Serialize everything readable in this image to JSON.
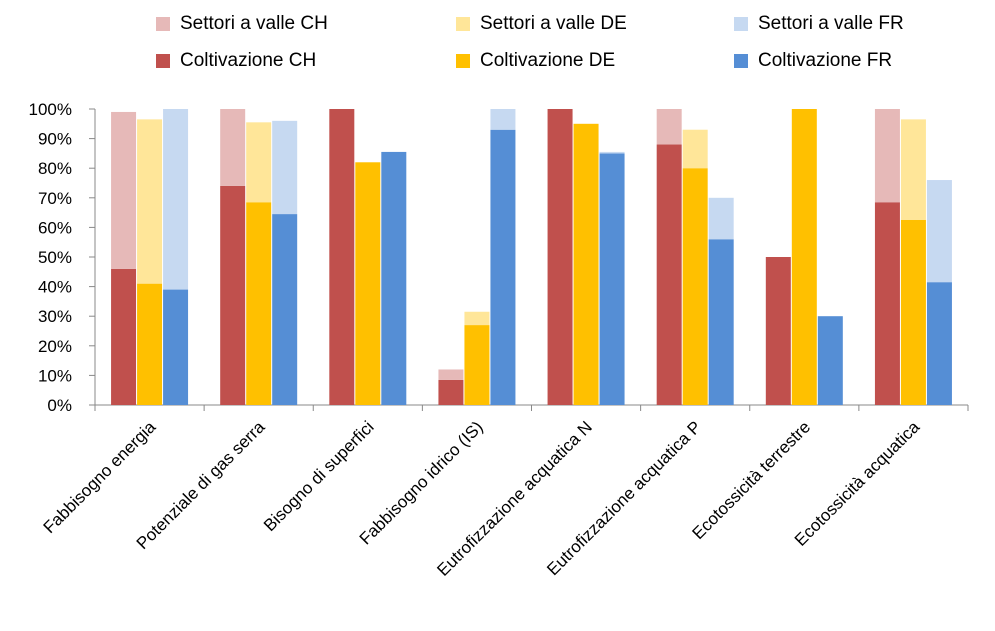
{
  "chart_data": {
    "type": "bar",
    "stacked_groups": true,
    "categories": [
      "Fabbisogno energia",
      "Potenziale di gas serra",
      "Bisogno di superfici",
      "Fabbisogno idrico (IS)",
      "Eutrofizzazione acquatica N",
      "Eutrofizzazione acquatica P",
      "Ecotossicità terrestre",
      "Ecotossicità acquatica"
    ],
    "groups": [
      {
        "country": "CH",
        "series": [
          {
            "name": "Coltivazione CH",
            "color": "#C0504D",
            "values": [
              46,
              74,
              100,
              8.5,
              100,
              88,
              50,
              68.5
            ]
          },
          {
            "name": "Settori a valle CH",
            "color": "#E6B9B8",
            "values": [
              53,
              26,
              0,
              3.5,
              0,
              12,
              0,
              31.5
            ]
          }
        ]
      },
      {
        "country": "DE",
        "series": [
          {
            "name": "Coltivazione DE",
            "color": "#FFC000",
            "values": [
              41,
              68.5,
              82,
              27,
              95,
              80,
              100,
              62.5
            ]
          },
          {
            "name": "Settori a valle DE",
            "color": "#FFE699",
            "values": [
              55.5,
              27,
              0,
              4.5,
              0,
              13,
              0,
              34
            ]
          }
        ]
      },
      {
        "country": "FR",
        "series": [
          {
            "name": "Coltivazione FR",
            "color": "#558ED5",
            "values": [
              39,
              64.5,
              85.5,
              93,
              85,
              56,
              30,
              41.5
            ]
          },
          {
            "name": "Settori a valle FR",
            "color": "#C6D9F1",
            "values": [
              61,
              31.5,
              0,
              7,
              0.5,
              14,
              0,
              34.5
            ]
          }
        ]
      }
    ],
    "ylim": [
      0,
      100
    ],
    "ytick_step": 10,
    "ytick_suffix": "%",
    "grid": false,
    "legend_position": "top"
  },
  "legend": {
    "row1": [
      "Settori a valle CH",
      "Settori a valle DE",
      "Settori a valle FR"
    ],
    "row2": [
      "Coltivazione CH",
      "Coltivazione DE",
      "Coltivazione FR"
    ],
    "colors1": [
      "#E6B9B8",
      "#FFE699",
      "#C6D9F1"
    ],
    "colors2": [
      "#C0504D",
      "#FFC000",
      "#558ED5"
    ]
  }
}
